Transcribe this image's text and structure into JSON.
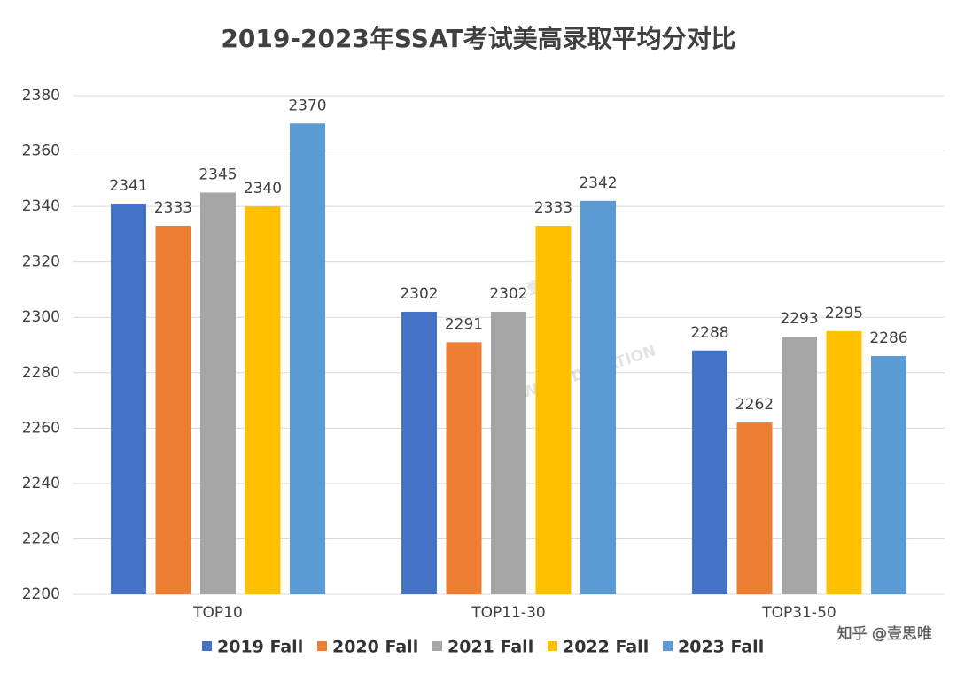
{
  "chart_data": {
    "type": "bar",
    "title": "2019-2023年SSAT考试美高录取平均分对比",
    "categories": [
      "TOP10",
      "TOP11-30",
      "TOP31-50"
    ],
    "series": [
      {
        "name": "2019 Fall",
        "color": "#4472c4",
        "values": [
          2341,
          2302,
          2288
        ]
      },
      {
        "name": "2020 Fall",
        "color": "#ed7d31",
        "values": [
          2333,
          2291,
          2262
        ]
      },
      {
        "name": "2021 Fall",
        "color": "#a5a5a5",
        "values": [
          2345,
          2302,
          2293
        ]
      },
      {
        "name": "2022 Fall",
        "color": "#ffc000",
        "values": [
          2340,
          2333,
          2295
        ]
      },
      {
        "name": "2023 Fall",
        "color": "#5b9bd5",
        "values": [
          2370,
          2342,
          2286
        ]
      }
    ],
    "ylim": [
      2200,
      2380
    ],
    "yticks": [
      2200,
      2220,
      2240,
      2260,
      2280,
      2300,
      2320,
      2340,
      2360,
      2380
    ],
    "grid": true,
    "legend": "bottom"
  },
  "watermarks": [
    "壹思唯",
    "EISWAY EDUCATION",
    "知乎 @壹思唯"
  ]
}
